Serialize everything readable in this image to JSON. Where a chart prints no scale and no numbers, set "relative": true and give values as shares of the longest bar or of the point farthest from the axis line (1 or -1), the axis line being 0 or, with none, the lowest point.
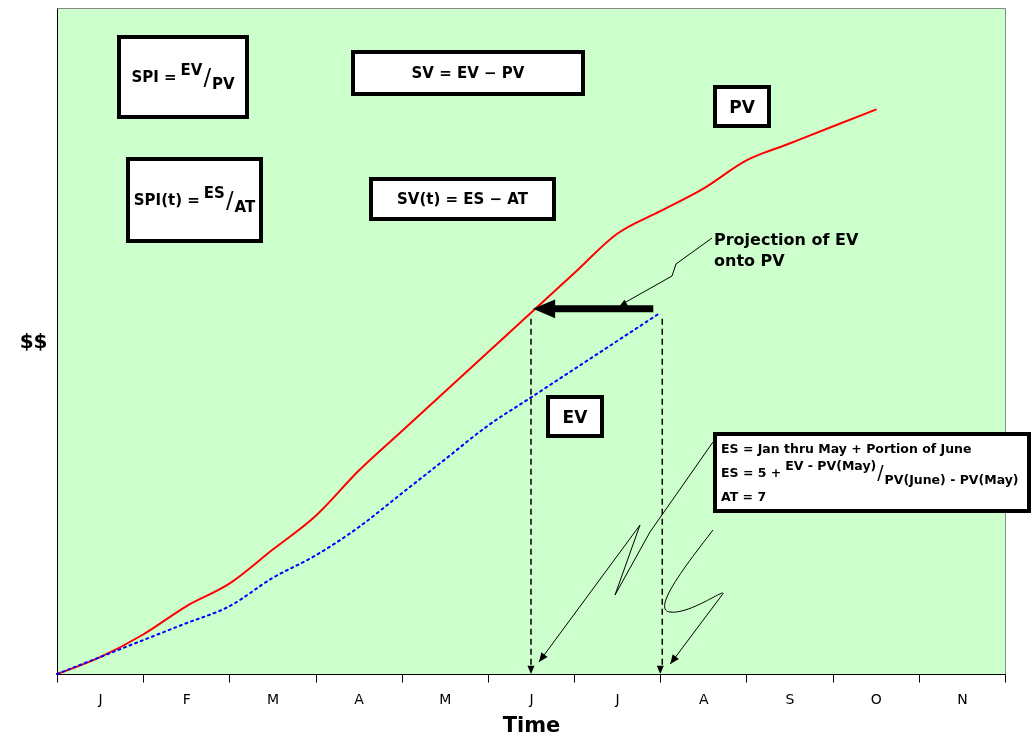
{
  "chart_data": {
    "type": "line",
    "relative": true,
    "xlabel": "Time",
    "ylabel": "$$",
    "categories": [
      null,
      "J",
      null,
      "F",
      null,
      "M",
      null,
      "A",
      null,
      "M",
      null,
      "J",
      null,
      "J",
      null,
      "A",
      null,
      "S",
      null,
      "O",
      null,
      "N",
      null
    ],
    "series": [
      {
        "name": "PV",
        "color": "#ff0000",
        "line_style": "solid",
        "values": [
          0,
          0.03,
          0.07,
          0.12,
          0.16,
          0.22,
          0.28,
          0.36,
          0.43,
          0.5,
          0.57,
          0.64,
          0.71,
          0.78,
          0.82,
          0.86,
          0.91,
          0.94,
          0.97,
          1,
          null,
          null,
          null
        ]
      },
      {
        "name": "EV",
        "color": "#0000ff",
        "line_style": "dotted",
        "values": [
          0,
          0.03,
          0.06,
          0.09,
          0.12,
          0.17,
          0.21,
          0.26,
          0.32,
          0.38,
          0.44,
          0.49,
          0.54,
          0.59,
          0.64,
          null,
          null,
          null,
          null,
          null,
          null,
          null,
          null
        ]
      }
    ],
    "annotations": [
      "SPI = EV/PV",
      "SV = EV − PV",
      "SPI(t) = ES/AT",
      "SV(t) = ES − AT",
      "Projection of EV onto PV",
      "ES = Jan thru May + Portion of June",
      "ES = 5 + EV - PV(May)/PV(June) - PV(May)",
      "AT = 7"
    ],
    "grid": false,
    "marker": "none"
  }
}
